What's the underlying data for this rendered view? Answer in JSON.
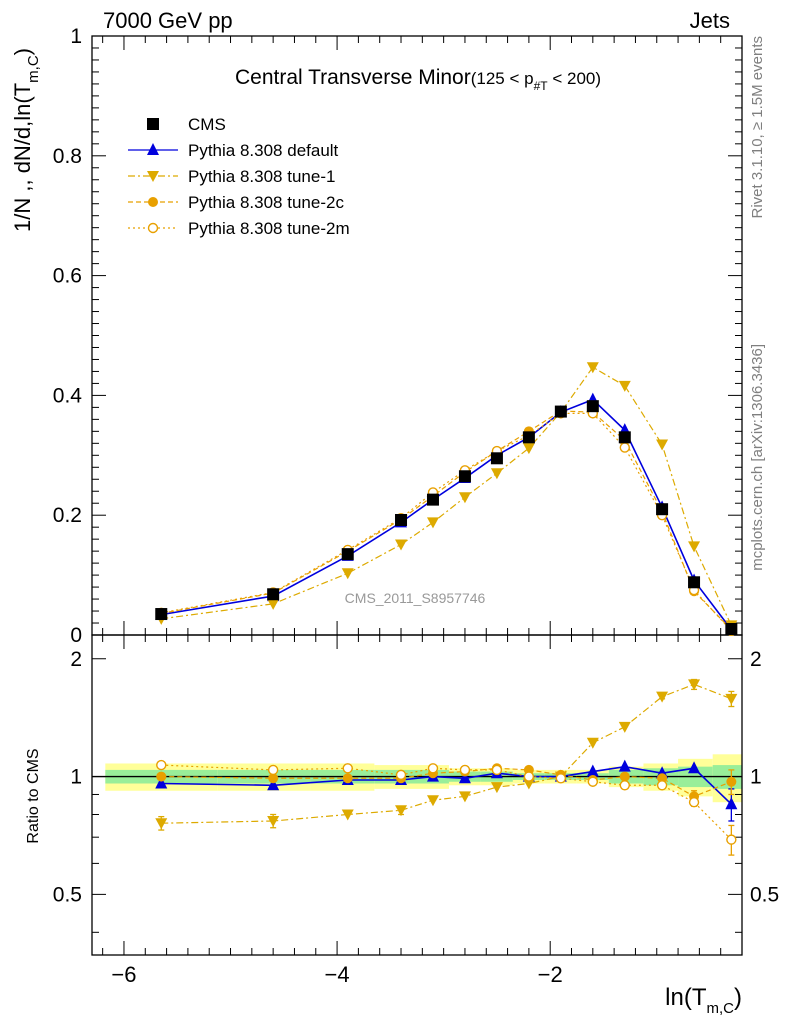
{
  "header": {
    "left": "7000 GeV pp",
    "right": "Jets"
  },
  "side_labels": {
    "top": "Rivet 3.1.10, ≥ 1.5M events",
    "bottom": "mcplots.cern.ch [arXiv:1306.3436]"
  },
  "watermark": "CMS_2011_S8957746",
  "chart_data": {
    "type": "line",
    "title": "Central Transverse Minor",
    "title_cut": "(125 < p",
    "title_cut_sub": "#T",
    "title_cut_end": " < 200)",
    "xlabel": "ln(T",
    "xlabel_sub": "m,C",
    "xlabel_end": ")",
    "ylabel": "1/N ,, dN/d,ln(T",
    "ylabel_sub": "m,C",
    "ylabel_end": ")",
    "ratio_ylabel": "Ratio to CMS",
    "xlim": [
      -6.3,
      -0.2
    ],
    "ylim": [
      0,
      1
    ],
    "ratio_ylim": [
      0.35,
      2.3
    ],
    "x_ticks": [
      "-6",
      "-4",
      "-2"
    ],
    "y_ticks": [
      "0",
      "0.2",
      "0.4",
      "0.6",
      "0.8",
      "1"
    ],
    "ratio_ticks": [
      "0.5",
      "1",
      "2"
    ],
    "x": [
      -5.65,
      -4.6,
      -3.9,
      -3.4,
      -3.1,
      -2.8,
      -2.5,
      -2.2,
      -1.9,
      -1.6,
      -1.3,
      -0.95,
      -0.65,
      -0.3
    ],
    "reference": {
      "name": "CMS",
      "values": [
        0.035,
        0.068,
        0.135,
        0.192,
        0.226,
        0.265,
        0.295,
        0.33,
        0.373,
        0.382,
        0.33,
        0.21,
        0.088,
        0.01
      ],
      "band_inner": [
        0.04,
        0.04,
        0.04,
        0.04,
        0.04,
        0.03,
        0.03,
        0.02,
        0.02,
        0.02,
        0.04,
        0.05,
        0.06,
        0.07
      ],
      "band_outer": [
        0.08,
        0.08,
        0.08,
        0.07,
        0.07,
        0.05,
        0.05,
        0.04,
        0.04,
        0.04,
        0.06,
        0.08,
        0.11,
        0.14
      ]
    },
    "series": [
      {
        "name": "Pythia 8.308 default",
        "color": "#0000dd",
        "marker": "triangle-up",
        "dash": "",
        "values": [
          0.034,
          0.065,
          0.132,
          0.188,
          0.226,
          0.262,
          0.3,
          0.33,
          0.372,
          0.393,
          0.342,
          0.213,
          0.091,
          0.009
        ],
        "ratio": [
          0.96,
          0.95,
          0.98,
          0.98,
          1.0,
          0.99,
          1.02,
          1.0,
          1.0,
          1.03,
          1.06,
          1.02,
          1.05,
          0.85
        ],
        "ratio_err": [
          0,
          0,
          0,
          0,
          0,
          0,
          0,
          0,
          0,
          0,
          0,
          0,
          0,
          0.08
        ]
      },
      {
        "name": "Pythia 8.308 tune-1",
        "color": "#ddaa00",
        "marker": "triangle-down",
        "dash": "7,3,2,3",
        "values": [
          0.027,
          0.052,
          0.103,
          0.151,
          0.188,
          0.23,
          0.27,
          0.312,
          0.372,
          0.447,
          0.416,
          0.318,
          0.148,
          0.016
        ],
        "ratio": [
          0.76,
          0.77,
          0.8,
          0.82,
          0.87,
          0.89,
          0.94,
          0.96,
          1.0,
          1.22,
          1.34,
          1.6,
          1.72,
          1.58
        ],
        "ratio_err": [
          0.03,
          0.03,
          0,
          0.02,
          0,
          0,
          0,
          0,
          0,
          0,
          0,
          0.02,
          0.05,
          0.07
        ]
      },
      {
        "name": "Pythia 8.308 tune-2c",
        "color": "#e8a000",
        "marker": "circle",
        "dash": "5,3",
        "values": [
          0.036,
          0.07,
          0.14,
          0.193,
          0.232,
          0.272,
          0.307,
          0.34,
          0.374,
          0.372,
          0.325,
          0.206,
          0.073,
          0.009
        ],
        "ratio": [
          1.0,
          0.99,
          0.99,
          0.99,
          1.02,
          1.03,
          1.05,
          1.04,
          1.01,
          0.98,
          1.0,
          0.99,
          0.89,
          0.97
        ],
        "ratio_err": [
          0,
          0,
          0,
          0,
          0,
          0,
          0,
          0,
          0,
          0,
          0,
          0,
          0.03,
          0.07
        ]
      },
      {
        "name": "Pythia 8.308 tune-2m",
        "color": "#e8a000",
        "marker": "circle-open",
        "dash": "2,3",
        "values": [
          0.037,
          0.071,
          0.142,
          0.195,
          0.238,
          0.275,
          0.307,
          0.333,
          0.37,
          0.37,
          0.313,
          0.2,
          0.075,
          0.007
        ],
        "ratio": [
          1.07,
          1.04,
          1.05,
          1.01,
          1.05,
          1.04,
          1.04,
          1.0,
          0.99,
          0.97,
          0.95,
          0.95,
          0.86,
          0.69
        ],
        "ratio_err": [
          0,
          0,
          0,
          0,
          0,
          0,
          0,
          0,
          0,
          0,
          0,
          0,
          0.02,
          0.06
        ]
      }
    ]
  }
}
